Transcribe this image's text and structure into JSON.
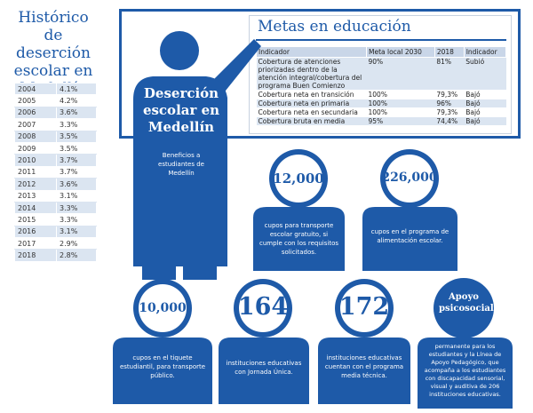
{
  "side_title": "Histórico de deserción escolar en Medellín",
  "history": [
    {
      "year": "2004",
      "rate": "4.1%"
    },
    {
      "year": "2005",
      "rate": "4.2%"
    },
    {
      "year": "2006",
      "rate": "3.6%"
    },
    {
      "year": "2007",
      "rate": "3.3%"
    },
    {
      "year": "2008",
      "rate": "3.5%"
    },
    {
      "year": "2009",
      "rate": "3.5%"
    },
    {
      "year": "2010",
      "rate": "3.7%"
    },
    {
      "year": "2011",
      "rate": "3.7%"
    },
    {
      "year": "2012",
      "rate": "3.6%"
    },
    {
      "year": "2013",
      "rate": "3.1%"
    },
    {
      "year": "2014",
      "rate": "3.3%"
    },
    {
      "year": "2015",
      "rate": "3.3%"
    },
    {
      "year": "2016",
      "rate": "3.1%"
    },
    {
      "year": "2017",
      "rate": "2.9%"
    },
    {
      "year": "2018",
      "rate": "2.8%"
    }
  ],
  "metas": {
    "title": "Metas en educación",
    "headers": [
      "Indicador",
      "Meta local 2030",
      "2018",
      "Indicador"
    ],
    "rows": [
      [
        "Cobertura de atenciones priorizadas dentro de la atención integral/cobertura del programa Buen Comienzo",
        "90%",
        "81%",
        "Subió"
      ],
      [
        "Cobertura neta en transición",
        "100%",
        "79,3%",
        "Bajó"
      ],
      [
        "Cobertura neta en primaria",
        "100%",
        "96%",
        "Bajó"
      ],
      [
        "Cobertura neta en secundaria",
        "100%",
        "79,3%",
        "Bajó"
      ],
      [
        "Cobertura bruta en media",
        "95%",
        "74,4%",
        "Bajó"
      ]
    ]
  },
  "person": {
    "title": "Deserción escolar en Medellín",
    "subtitle": "Beneficios a estudiantes de Medellín"
  },
  "benefits": [
    {
      "value": "12,000",
      "text": "cupos para transporte escolar gratuito, si cumple con los requisitos solicitados."
    },
    {
      "value": "226,000",
      "text": "cupos en el programa de alimentación escolar."
    },
    {
      "value": "10,000",
      "text": "cupos en el tiquete estudiantil, para transporte público."
    },
    {
      "value": "164",
      "text": "instituciones educativas con Jornada Única."
    },
    {
      "value": "172",
      "text": "instituciones educativas cuentan con el programa media técnica."
    },
    {
      "value": "Apoyo psicosocial",
      "text": "permanente para los estudiantes y la Línea de Apoyo Pedagógico, que acompaña a los estudiantes con discapacidad sensorial, visual y auditiva de 206 instituciones educativas."
    }
  ],
  "colors": {
    "blue": "#1e5aa8",
    "light_row": "#dbe5f1"
  }
}
